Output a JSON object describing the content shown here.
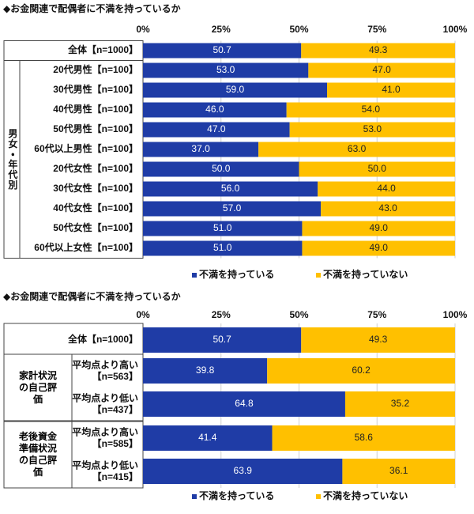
{
  "chart_data": [
    {
      "type": "stacked-bar",
      "title": "◆お金関連で配偶者に不満を持っているか",
      "categories": [
        "全体【n=1000】",
        "20代男性【n=100】",
        "30代男性【n=100】",
        "40代男性【n=100】",
        "50代男性【n=100】",
        "60代以上男性【n=100】",
        "20代女性【n=100】",
        "30代女性【n=100】",
        "40代女性【n=100】",
        "50代女性【n=100】",
        "60代以上女性【n=100】"
      ],
      "groups": [
        {
          "label": "男女・年代別",
          "from": 1,
          "to": 10
        }
      ],
      "series": [
        {
          "name": "不満を持っている",
          "color": "#1f3ca6",
          "values": [
            50.7,
            53,
            59,
            46,
            47,
            37,
            50,
            56,
            57,
            51,
            51
          ],
          "value_labels": [
            "50.7",
            "53.0",
            "59.0",
            "46.0",
            "47.0",
            "37.0",
            "50.0",
            "56.0",
            "57.0",
            "51.0",
            "51.0"
          ]
        },
        {
          "name": "不満を持っていない",
          "color": "#ffc000",
          "values": [
            49.3,
            47,
            41,
            54,
            53,
            63,
            50,
            44,
            43,
            49,
            49
          ],
          "value_labels": [
            "49.3",
            "47.0",
            "41.0",
            "54.0",
            "53.0",
            "63.0",
            "50.0",
            "44.0",
            "43.0",
            "49.0",
            "49.0"
          ]
        }
      ],
      "xlim": [
        0,
        100
      ],
      "xticks": [
        {
          "value": 0,
          "label": "0%"
        },
        {
          "value": 25,
          "label": "25%"
        },
        {
          "value": 50,
          "label": "50%"
        },
        {
          "value": 75,
          "label": "75%"
        },
        {
          "value": 100,
          "label": "100%"
        }
      ],
      "legend": "bottom"
    },
    {
      "type": "stacked-bar",
      "title": "◆お金関連で配偶者に不満を持っているか",
      "categories": [
        "全体【n=1000】",
        "平均点より高い【n=563】",
        "平均点より低い【n=437】",
        "平均点より高い【n=585】",
        "平均点より低い【n=415】"
      ],
      "groups": [
        {
          "label": "家計状況の自己評価",
          "from": 1,
          "to": 2
        },
        {
          "label": "老後資金準備状況の自己評価",
          "from": 3,
          "to": 4
        }
      ],
      "series": [
        {
          "name": "不満を持っている",
          "color": "#1f3ca6",
          "values": [
            50.7,
            39.8,
            64.8,
            41.4,
            63.9
          ]
        },
        {
          "name": "不満を持っていない",
          "color": "#ffc000",
          "values": [
            49.3,
            60.2,
            35.2,
            58.6,
            36.1
          ]
        }
      ],
      "xlim": [
        0,
        100
      ],
      "xticks": [
        {
          "value": 0,
          "label": "0%"
        },
        {
          "value": 25,
          "label": "25%"
        },
        {
          "value": 50,
          "label": "50%"
        },
        {
          "value": 75,
          "label": "75%"
        },
        {
          "value": 100,
          "label": "100%"
        }
      ],
      "legend": "bottom"
    }
  ]
}
